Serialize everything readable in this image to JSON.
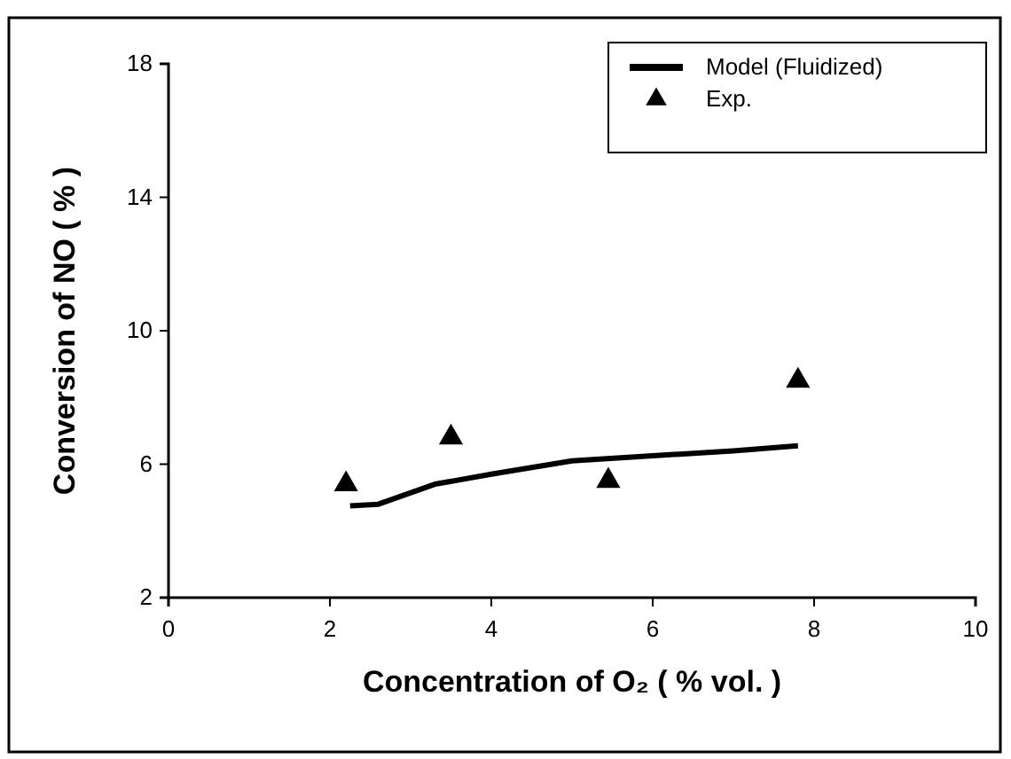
{
  "chart_data": {
    "type": "scatter",
    "xlabel": "Concentration of O₂ ( % vol. )",
    "ylabel": "Conversion of NO ( % )",
    "xlim": [
      0,
      10
    ],
    "xticks": [
      0,
      2,
      4,
      6,
      8,
      10
    ],
    "ylim": [
      2,
      18
    ],
    "yticks": [
      2,
      6,
      10,
      14,
      18
    ],
    "grid": false,
    "legend": "top right",
    "series": [
      {
        "name": "Model (Fluidized)",
        "type": "line",
        "color": "#000000",
        "marker": "none",
        "line_style": "solid",
        "x": [
          2.25,
          2.6,
          3.3,
          4,
          5,
          6,
          7,
          7.8
        ],
        "values": [
          4.75,
          4.8,
          5.4,
          5.7,
          6.1,
          6.25,
          6.4,
          6.55
        ]
      },
      {
        "name": "Exp.",
        "color": "#000000",
        "marker": "triangle",
        "x": [
          2.2,
          3.5,
          5.45,
          7.8
        ],
        "values": [
          5.4,
          6.8,
          5.5,
          8.5
        ]
      }
    ]
  }
}
